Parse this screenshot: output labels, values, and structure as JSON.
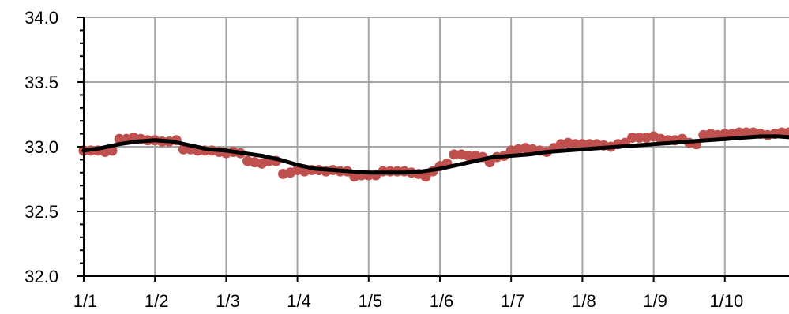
{
  "chart_data": {
    "type": "line",
    "title": "",
    "xlabel": "",
    "ylabel": "",
    "categories": [
      "1/1",
      "1/2",
      "1/3",
      "1/4",
      "1/5",
      "1/6",
      "1/7",
      "1/8",
      "1/9",
      "1/10"
    ],
    "xlim": [
      0,
      10
    ],
    "ylim": [
      32.0,
      34.0
    ],
    "y_ticks": [
      32.0,
      32.5,
      33.0,
      33.5,
      34.0
    ],
    "y_tick_labels": [
      "32.0",
      "32.5",
      "33.0",
      "33.5",
      "34.0"
    ],
    "grid": true,
    "legend": "none",
    "colors": {
      "scatter": "#c0504d",
      "line": "#000000",
      "grid": "#a6a6a6",
      "axis": "#000000"
    },
    "series": [
      {
        "kind": "scatter",
        "x": [
          0.0,
          0.1,
          0.2,
          0.3,
          0.4,
          0.5,
          0.6,
          0.7,
          0.8,
          0.9,
          1.0,
          1.1,
          1.2,
          1.3,
          1.4,
          1.5,
          1.6,
          1.7,
          1.8,
          1.9,
          2.0,
          2.1,
          2.2,
          2.3,
          2.4,
          2.5,
          2.6,
          2.7,
          2.8,
          2.9,
          3.0,
          3.1,
          3.2,
          3.3,
          3.4,
          3.5,
          3.6,
          3.7,
          3.8,
          3.9,
          4.0,
          4.1,
          4.2,
          4.3,
          4.4,
          4.5,
          4.6,
          4.7,
          4.8,
          4.9,
          5.0,
          5.1,
          5.2,
          5.3,
          5.4,
          5.5,
          5.6,
          5.7,
          5.8,
          5.9,
          6.0,
          6.1,
          6.2,
          6.3,
          6.4,
          6.5,
          6.6,
          6.7,
          6.8,
          6.9,
          7.0,
          7.1,
          7.2,
          7.3,
          7.4,
          7.5,
          7.6,
          7.7,
          7.8,
          7.9,
          8.0,
          8.1,
          8.2,
          8.3,
          8.4,
          8.5,
          8.6,
          8.7,
          8.8,
          8.9,
          9.0,
          9.1,
          9.2,
          9.3,
          9.4,
          9.5,
          9.6,
          9.7,
          9.8,
          9.9
        ],
        "y": [
          32.97,
          32.97,
          32.97,
          32.96,
          32.97,
          33.06,
          33.06,
          33.07,
          33.06,
          33.05,
          33.05,
          33.04,
          33.04,
          33.05,
          32.98,
          32.98,
          32.97,
          32.97,
          32.97,
          32.96,
          32.95,
          32.96,
          32.95,
          32.89,
          32.88,
          32.87,
          32.89,
          32.89,
          32.79,
          32.8,
          32.82,
          32.81,
          32.82,
          32.82,
          32.81,
          32.82,
          32.81,
          32.81,
          32.77,
          32.78,
          32.78,
          32.78,
          32.81,
          32.81,
          32.81,
          32.81,
          32.8,
          32.79,
          32.77,
          32.81,
          32.85,
          32.87,
          32.94,
          32.94,
          32.93,
          32.93,
          32.92,
          32.88,
          32.92,
          32.93,
          32.97,
          32.98,
          32.99,
          32.98,
          32.97,
          32.96,
          32.99,
          33.02,
          33.03,
          33.02,
          33.02,
          33.02,
          33.02,
          33.01,
          33.0,
          33.02,
          33.03,
          33.07,
          33.07,
          33.07,
          33.08,
          33.06,
          33.05,
          33.05,
          33.06,
          33.03,
          33.02,
          33.09,
          33.1,
          33.09,
          33.1,
          33.1,
          33.11,
          33.11,
          33.11,
          33.1,
          33.09,
          33.1,
          33.11,
          33.11
        ]
      },
      {
        "kind": "line",
        "x": [
          0.0,
          0.25,
          0.5,
          0.75,
          1.0,
          1.25,
          1.5,
          1.75,
          2.0,
          2.25,
          2.5,
          2.75,
          3.0,
          3.25,
          3.5,
          3.75,
          4.0,
          4.25,
          4.5,
          4.75,
          5.0,
          5.25,
          5.5,
          5.75,
          6.0,
          6.25,
          6.5,
          6.75,
          7.0,
          7.25,
          7.5,
          7.75,
          8.0,
          8.25,
          8.5,
          8.75,
          9.0,
          9.25,
          9.5,
          9.75,
          10.0
        ],
        "y": [
          32.97,
          32.99,
          33.02,
          33.04,
          33.05,
          33.04,
          33.01,
          32.98,
          32.97,
          32.95,
          32.93,
          32.9,
          32.86,
          32.83,
          32.82,
          32.81,
          32.8,
          32.8,
          32.8,
          32.81,
          32.83,
          32.86,
          32.89,
          32.92,
          32.93,
          32.94,
          32.96,
          32.97,
          32.98,
          32.99,
          33.0,
          33.01,
          33.02,
          33.03,
          33.04,
          33.05,
          33.06,
          33.07,
          33.08,
          33.08,
          33.07
        ]
      }
    ]
  }
}
